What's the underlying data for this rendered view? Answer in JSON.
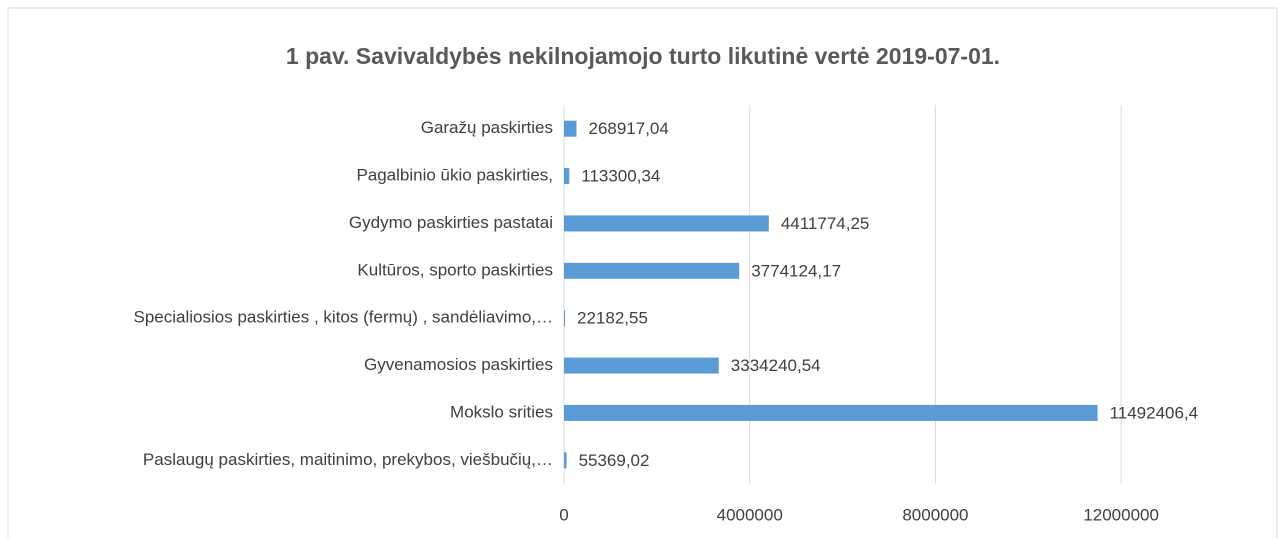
{
  "chart_data": {
    "type": "bar",
    "orientation": "horizontal",
    "title": "1 pav.  Savivaldybės nekilnojamojo turto likutinė vertė 2019-07-01.",
    "categories": [
      "Garažų paskirties",
      "Pagalbinio ūkio paskirties,",
      "Gydymo paskirties pastatai",
      "Kultūros, sporto  paskirties",
      "Specialiosios paskirties , kitos (fermų) , sandėliavimo,…",
      "Gyvenamosios paskirties",
      "Mokslo srities",
      "Paslaugų paskirties,  maitinimo,  prekybos, viešbučių,…"
    ],
    "values": [
      268917.04,
      113300.34,
      4411774.25,
      3774124.17,
      22182.55,
      3334240.54,
      11492406.4,
      55369.02
    ],
    "value_labels": [
      "268917,04",
      "113300,34",
      "4411774,25",
      "3774124,17",
      "22182,55",
      "3334240,54",
      "11492406,4",
      "55369,02"
    ],
    "color": "#5b9bd5",
    "xlim": [
      0,
      14000000
    ],
    "xticks": [
      0,
      4000000,
      8000000,
      12000000
    ],
    "grid": true
  }
}
